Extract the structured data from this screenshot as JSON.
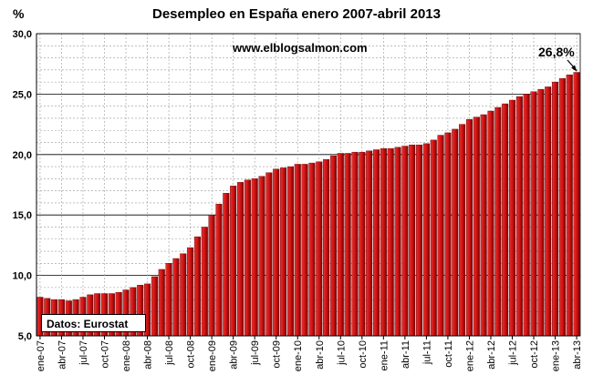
{
  "chart_data": {
    "type": "bar",
    "title": "Desempleo en España enero 2007-abril 2013",
    "ylabel": "%",
    "watermark": "www.elblogsalmon.com",
    "annotation": "26,8%",
    "source_note": "Datos: Eurostat",
    "ylim": [
      5,
      30
    ],
    "yticks": [
      "5,0",
      "10,0",
      "15,0",
      "20,0",
      "25,0",
      "30,0"
    ],
    "grid": true,
    "bar_color": "#cc1111",
    "categories": [
      "ene-07",
      "feb-07",
      "mar-07",
      "abr-07",
      "may-07",
      "jun-07",
      "jul-07",
      "ago-07",
      "sep-07",
      "oct-07",
      "nov-07",
      "dic-07",
      "ene-08",
      "feb-08",
      "mar-08",
      "abr-08",
      "may-08",
      "jun-08",
      "jul-08",
      "ago-08",
      "sep-08",
      "oct-08",
      "nov-08",
      "dic-08",
      "ene-09",
      "feb-09",
      "mar-09",
      "abr-09",
      "may-09",
      "jun-09",
      "jul-09",
      "ago-09",
      "sep-09",
      "oct-09",
      "nov-09",
      "dic-09",
      "ene-10",
      "feb-10",
      "mar-10",
      "abr-10",
      "may-10",
      "jun-10",
      "jul-10",
      "ago-10",
      "sep-10",
      "oct-10",
      "nov-10",
      "dic-10",
      "ene-11",
      "feb-11",
      "mar-11",
      "abr-11",
      "may-11",
      "jun-11",
      "jul-11",
      "ago-11",
      "sep-11",
      "oct-11",
      "nov-11",
      "dic-11",
      "ene-12",
      "feb-12",
      "mar-12",
      "abr-12",
      "may-12",
      "jun-12",
      "jul-12",
      "ago-12",
      "sep-12",
      "oct-12",
      "nov-12",
      "dic-12",
      "ene-13",
      "feb-13",
      "mar-13",
      "abr-13"
    ],
    "tick_labels": [
      "ene-07",
      "abr-07",
      "jul-07",
      "oct-07",
      "ene-08",
      "abr-08",
      "jul-08",
      "oct-08",
      "ene-09",
      "abr-09",
      "jul-09",
      "oct-09",
      "ene-10",
      "abr-10",
      "jul-10",
      "oct-10",
      "ene-11",
      "abr-11",
      "jul-11",
      "oct-11",
      "ene-12",
      "abr-12",
      "jul-12",
      "oct-12",
      "ene-13",
      "abr-13"
    ],
    "values": [
      8.2,
      8.1,
      8.0,
      8.0,
      7.9,
      8.0,
      8.2,
      8.4,
      8.5,
      8.5,
      8.5,
      8.6,
      8.8,
      9.0,
      9.2,
      9.3,
      9.9,
      10.5,
      11.0,
      11.4,
      11.8,
      12.3,
      13.2,
      14.0,
      15.0,
      15.9,
      16.8,
      17.4,
      17.7,
      17.9,
      18.0,
      18.2,
      18.5,
      18.8,
      18.9,
      19.0,
      19.2,
      19.2,
      19.3,
      19.4,
      19.6,
      19.9,
      20.1,
      20.1,
      20.2,
      20.2,
      20.3,
      20.4,
      20.5,
      20.5,
      20.6,
      20.7,
      20.8,
      20.8,
      20.9,
      21.2,
      21.6,
      21.8,
      22.1,
      22.5,
      22.9,
      23.1,
      23.3,
      23.6,
      23.9,
      24.2,
      24.5,
      24.8,
      25.0,
      25.2,
      25.4,
      25.6,
      26.0,
      26.3,
      26.6,
      26.8
    ]
  }
}
